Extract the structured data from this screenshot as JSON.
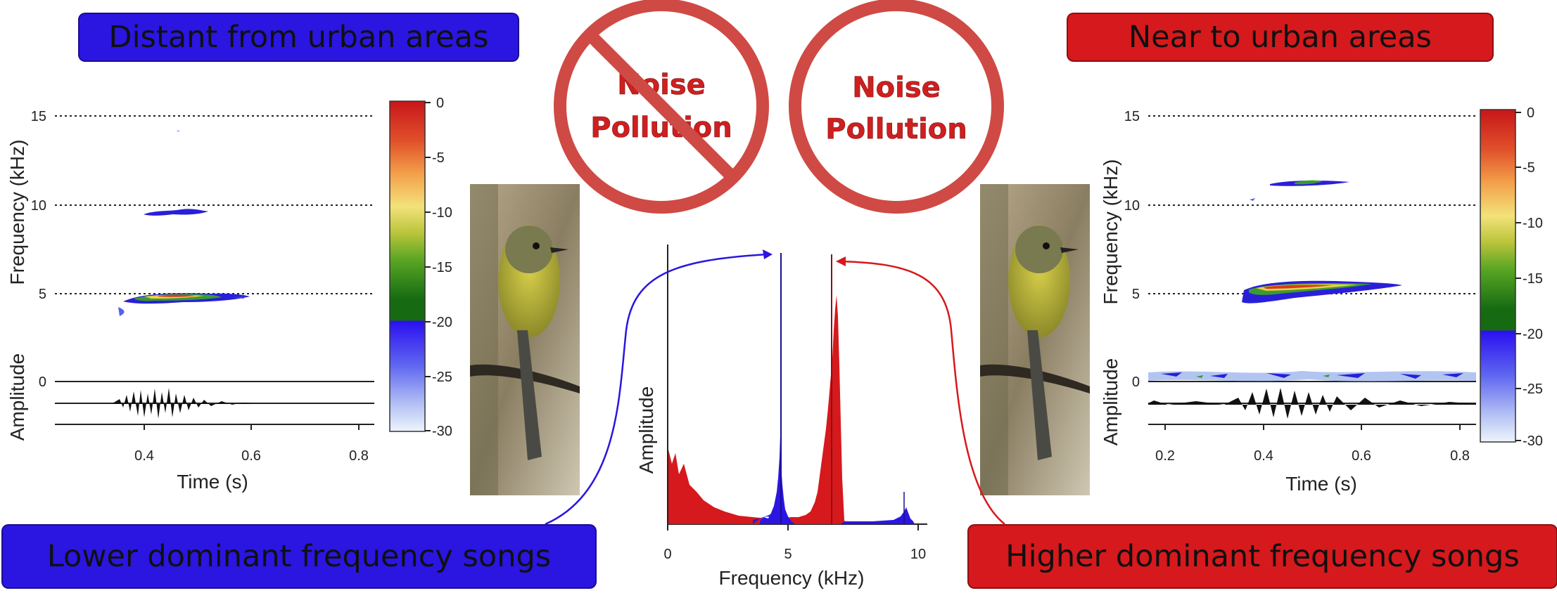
{
  "banners": {
    "top_left": "Distant from urban areas",
    "top_right": "Near to urban areas",
    "bottom_left": "Lower dominant frequency songs",
    "bottom_right": "Higher dominant frequency songs"
  },
  "noise_signs": [
    {
      "line1": "Noise",
      "line2": "Pollution",
      "crossed": true
    },
    {
      "line1": "Noise",
      "line2": "Pollution",
      "crossed": false
    }
  ],
  "left_spectrogram": {
    "y_label": "Frequency (kHz)",
    "amp_label": "Amplitude",
    "x_label": "Time (s)",
    "y_ticks": [
      "15",
      "10",
      "5",
      "0"
    ],
    "x_ticks": [
      "0.4",
      "0.6",
      "0.8"
    ],
    "colorbar_ticks": [
      "0",
      "-5",
      "-10",
      "-15",
      "-20",
      "-25",
      "-30"
    ]
  },
  "right_spectrogram": {
    "y_label": "Frequency (kHz)",
    "amp_label": "Amplitude",
    "x_label": "Time (s)",
    "y_ticks": [
      "15",
      "10",
      "5",
      "0"
    ],
    "x_ticks": [
      "0.2",
      "0.4",
      "0.6",
      "0.8"
    ],
    "colorbar_ticks": [
      "0",
      "-5",
      "-10",
      "-15",
      "-20",
      "-25",
      "-30"
    ]
  },
  "center_spectrum": {
    "y_label": "Amplitude",
    "x_label": "Frequency (kHz)",
    "x_ticks": [
      "0",
      "5",
      "10"
    ],
    "blue_peak_khz": 4.6,
    "red_peak_khz": 6.5
  },
  "colors": {
    "blue": "#2a16e0",
    "red": "#d6191c",
    "sign_red": "#cf4a44"
  }
}
